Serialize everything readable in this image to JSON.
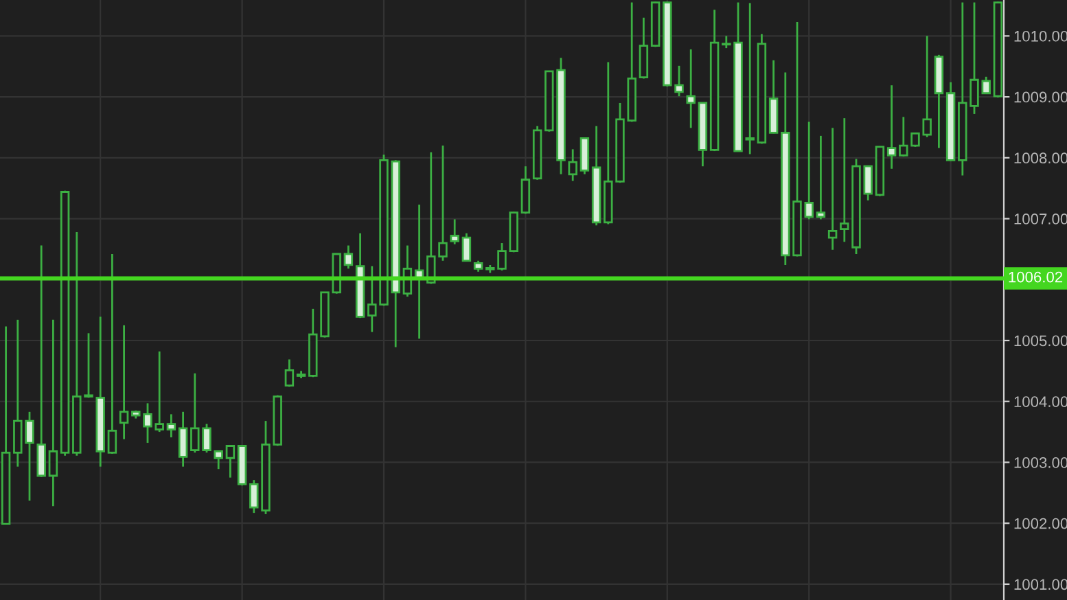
{
  "chart_data": {
    "type": "candlestick",
    "color": "#3cb043",
    "categories": [
      null,
      null,
      null,
      null,
      null,
      null,
      null,
      null,
      null,
      null,
      null,
      null,
      null,
      null,
      null,
      null,
      null,
      null,
      null,
      null,
      null,
      null,
      null,
      null,
      null,
      null,
      null,
      null,
      null,
      null,
      null,
      null,
      null,
      null,
      null,
      null,
      null,
      null,
      null,
      null,
      null,
      null,
      null,
      null,
      null,
      null,
      null,
      null,
      null,
      null,
      null,
      null,
      null,
      null,
      null,
      null,
      null,
      null,
      null,
      null,
      null,
      null,
      null,
      null,
      null,
      null,
      null,
      null,
      null,
      null,
      null,
      null,
      null,
      null,
      null,
      null,
      null,
      null,
      null,
      null,
      null,
      null,
      null,
      null,
      null
    ],
    "ohlc": [
      [
        1001.99,
        1005.23,
        1001.98,
        1003.16
      ],
      [
        1003.16,
        1005.34,
        1002.93,
        1003.68
      ],
      [
        1003.68,
        1003.83,
        1002.37,
        1003.32
      ],
      [
        1003.29,
        1006.56,
        1002.76,
        1002.78
      ],
      [
        1002.78,
        1005.34,
        1002.28,
        1003.18
      ],
      [
        1003.16,
        1007.46,
        1003.11,
        1007.44
      ],
      [
        1003.16,
        1006.78,
        1003.11,
        1004.08
      ],
      [
        1004.1,
        1005.12,
        1004.06,
        1004.08
      ],
      [
        1004.06,
        1005.39,
        1002.93,
        1003.18
      ],
      [
        1003.16,
        1006.42,
        1003.14,
        1003.52
      ],
      [
        1003.65,
        1005.25,
        1003.38,
        1003.83
      ],
      [
        1003.83,
        1003.85,
        1003.72,
        1003.77
      ],
      [
        1003.79,
        1003.97,
        1003.32,
        1003.59
      ],
      [
        1003.54,
        1004.82,
        1003.5,
        1003.63
      ],
      [
        1003.63,
        1003.79,
        1003.41,
        1003.54
      ],
      [
        1003.56,
        1003.83,
        1002.93,
        1003.09
      ],
      [
        1003.2,
        1004.46,
        1003.16,
        1003.56
      ],
      [
        1003.56,
        1003.63,
        1003.16,
        1003.2
      ],
      [
        1003.18,
        1003.19,
        1002.89,
        1003.07
      ],
      [
        1003.07,
        1003.28,
        1002.75,
        1003.27
      ],
      [
        1003.27,
        1003.28,
        1002.62,
        1002.64
      ],
      [
        1002.64,
        1002.71,
        1002.17,
        1002.26
      ],
      [
        1002.21,
        1003.68,
        1002.15,
        1003.29
      ],
      [
        1003.29,
        1004.1,
        1003.27,
        1004.08
      ],
      [
        1004.26,
        1004.69,
        1004.24,
        1004.51
      ],
      [
        1004.42,
        1004.5,
        1004.38,
        1004.44
      ],
      [
        1004.42,
        1005.52,
        1004.4,
        1005.1
      ],
      [
        1005.07,
        1005.8,
        1005.05,
        1005.79
      ],
      [
        1005.79,
        1006.43,
        1005.77,
        1006.42
      ],
      [
        1006.42,
        1006.56,
        1006.18,
        1006.24
      ],
      [
        1006.22,
        1006.76,
        1005.37,
        1005.39
      ],
      [
        1005.41,
        1006.22,
        1005.14,
        1005.59
      ],
      [
        1005.59,
        1008.05,
        1005.57,
        1007.96
      ],
      [
        1007.94,
        1007.96,
        1004.89,
        1005.79
      ],
      [
        1005.77,
        1006.56,
        1005.72,
        1006.18
      ],
      [
        1006.15,
        1007.23,
        1005.03,
        1006.02
      ],
      [
        1005.95,
        1008.09,
        1005.93,
        1006.38
      ],
      [
        1006.38,
        1008.2,
        1006.31,
        1006.6
      ],
      [
        1006.72,
        1006.99,
        1006.58,
        1006.63
      ],
      [
        1006.69,
        1006.76,
        1006.3,
        1006.31
      ],
      [
        1006.27,
        1006.31,
        1006.13,
        1006.18
      ],
      [
        1006.17,
        1006.24,
        1006.11,
        1006.19
      ],
      [
        1006.18,
        1006.6,
        1006.15,
        1006.47
      ],
      [
        1006.47,
        1007.11,
        1006.45,
        1007.1
      ],
      [
        1007.1,
        1007.86,
        1007.08,
        1007.64
      ],
      [
        1007.66,
        1008.52,
        1007.64,
        1008.45
      ],
      [
        1008.45,
        1009.43,
        1008.43,
        1009.42
      ],
      [
        1009.44,
        1009.64,
        1007.73,
        1007.96
      ],
      [
        1007.73,
        1008.14,
        1007.62,
        1007.93
      ],
      [
        1008.32,
        1008.33,
        1007.73,
        1007.79
      ],
      [
        1007.84,
        1008.52,
        1006.89,
        1006.94
      ],
      [
        1006.94,
        1009.57,
        1006.91,
        1007.61
      ],
      [
        1007.61,
        1008.9,
        1007.59,
        1008.63
      ],
      [
        1008.61,
        1010.55,
        1008.59,
        1009.3
      ],
      [
        1009.32,
        1010.3,
        1009.3,
        1009.84
      ],
      [
        1009.84,
        1010.56,
        1009.82,
        1010.55
      ],
      [
        1010.55,
        1010.56,
        1009.17,
        1009.19
      ],
      [
        1009.19,
        1009.51,
        1009.01,
        1009.08
      ],
      [
        1009.01,
        1009.78,
        1008.49,
        1008.9
      ],
      [
        1008.9,
        1008.91,
        1007.86,
        1008.13
      ],
      [
        1008.13,
        1010.43,
        1008.11,
        1009.89
      ],
      [
        1009.87,
        1010.0,
        1009.8,
        1009.86
      ],
      [
        1009.89,
        1010.55,
        1008.1,
        1008.11
      ],
      [
        1008.3,
        1010.54,
        1008.06,
        1008.32
      ],
      [
        1008.25,
        1010.03,
        1008.23,
        1009.87
      ],
      [
        1008.97,
        1009.6,
        1008.4,
        1008.41
      ],
      [
        1008.41,
        1009.4,
        1006.24,
        1006.4
      ],
      [
        1006.4,
        1010.23,
        1006.38,
        1007.28
      ],
      [
        1007.26,
        1008.59,
        1006.99,
        1007.03
      ],
      [
        1007.1,
        1008.36,
        1006.99,
        1007.03
      ],
      [
        1006.69,
        1008.49,
        1006.49,
        1006.8
      ],
      [
        1006.83,
        1008.65,
        1006.62,
        1006.92
      ],
      [
        1006.53,
        1007.98,
        1006.42,
        1007.86
      ],
      [
        1007.86,
        1007.87,
        1007.3,
        1007.41
      ],
      [
        1007.39,
        1008.19,
        1007.37,
        1008.18
      ],
      [
        1008.16,
        1009.19,
        1007.82,
        1008.04
      ],
      [
        1008.04,
        1008.67,
        1008.02,
        1008.2
      ],
      [
        1008.2,
        1008.41,
        1008.18,
        1008.4
      ],
      [
        1008.38,
        1010.0,
        1008.34,
        1008.63
      ],
      [
        1009.66,
        1009.69,
        1008.16,
        1009.06
      ],
      [
        1009.06,
        1009.24,
        1007.95,
        1007.96
      ],
      [
        1007.96,
        1010.55,
        1007.71,
        1008.9
      ],
      [
        1008.85,
        1010.55,
        1008.72,
        1009.28
      ],
      [
        1009.26,
        1009.33,
        1009.05,
        1009.06
      ],
      [
        1009.01,
        1010.56,
        1008.99,
        1010.55
      ]
    ],
    "ylim": [
      1000.74,
      1010.59
    ],
    "yticks": [
      {
        "value": 1001,
        "label": "1001.00"
      },
      {
        "value": 1002,
        "label": "1002.00"
      },
      {
        "value": 1003,
        "label": "1003.00"
      },
      {
        "value": 1004,
        "label": "1004.00"
      },
      {
        "value": 1005,
        "label": "1005.00"
      },
      {
        "value": 1006,
        "label": null
      },
      {
        "value": 1007,
        "label": "1007.00"
      },
      {
        "value": 1008,
        "label": "1008.00"
      },
      {
        "value": 1009,
        "label": "1009.00"
      },
      {
        "value": 1010,
        "label": "1010.00"
      }
    ],
    "ref_lines": [
      {
        "axis": "y",
        "value": 1006.02,
        "label": "1006.02",
        "color": "#44d620"
      }
    ],
    "grid": true,
    "tick_labels": "y"
  }
}
